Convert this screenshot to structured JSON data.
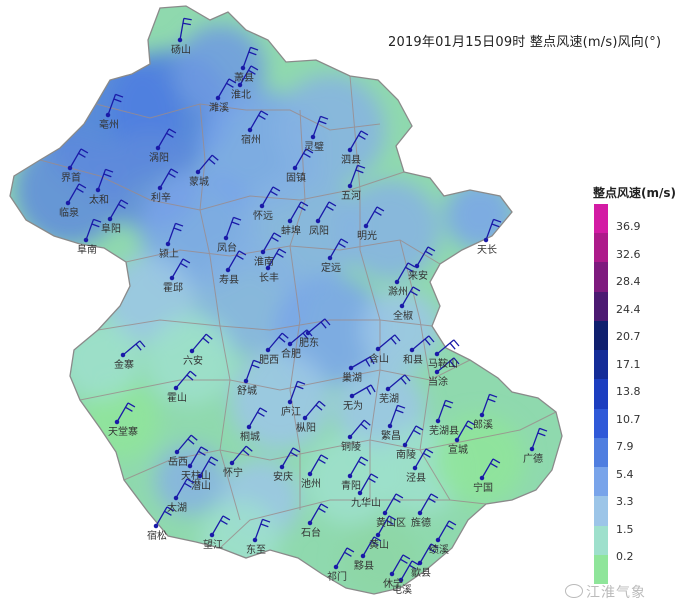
{
  "title": "2019年01月15日09时 整点风速(m/s)风向(°)",
  "legend": {
    "title": "整点风速(m/s)",
    "labels": [
      "36.9",
      "32.6",
      "28.4",
      "24.4",
      "20.7",
      "17.1",
      "13.8",
      "10.7",
      "7.9",
      "5.4",
      "3.3",
      "1.5",
      "0.2"
    ],
    "colors": [
      "#d31ba4",
      "#ad1a8a",
      "#7e1a7e",
      "#4c1a72",
      "#0f1f6e",
      "#142c98",
      "#1c3ec0",
      "#2f59d8",
      "#4f7ee0",
      "#79a4ea",
      "#9cc5e8",
      "#9ee0cc",
      "#8fe59a"
    ]
  },
  "colors": {
    "province_fill": "#8fd9ae",
    "north_fill": "#5f8bdc",
    "mid_fill": "#86b3e3",
    "south_fill": "#8dd6a6",
    "boundary": "#9b8b8b",
    "wind_barb": "#1a1aa8",
    "label": "#333333"
  },
  "stations": [
    {
      "name": "砀山"
    },
    {
      "name": "萧县"
    },
    {
      "name": "淮北"
    },
    {
      "name": "濉溪"
    },
    {
      "name": "宿州"
    },
    {
      "name": "灵璧"
    },
    {
      "name": "泗县"
    },
    {
      "name": "涡阳"
    },
    {
      "name": "蒙城"
    },
    {
      "name": "亳州"
    },
    {
      "name": "利辛"
    },
    {
      "name": "界首"
    },
    {
      "name": "太和"
    },
    {
      "name": "临泉"
    },
    {
      "name": "阜阳"
    },
    {
      "name": "阜南"
    },
    {
      "name": "怀远"
    },
    {
      "name": "蚌埠"
    },
    {
      "name": "固镇"
    },
    {
      "name": "五河"
    },
    {
      "name": "凤阳"
    },
    {
      "name": "明光"
    },
    {
      "name": "天长"
    },
    {
      "name": "凤台"
    },
    {
      "name": "淮南"
    },
    {
      "name": "颍上"
    },
    {
      "name": "长丰"
    },
    {
      "name": "定远"
    },
    {
      "name": "滁州"
    },
    {
      "name": "来安"
    },
    {
      "name": "霍邱"
    },
    {
      "name": "寿县"
    },
    {
      "name": "全椒"
    },
    {
      "name": "肥东"
    },
    {
      "name": "合肥"
    },
    {
      "name": "肥西"
    },
    {
      "name": "含山"
    },
    {
      "name": "和县"
    },
    {
      "name": "马鞍山"
    },
    {
      "name": "当涂"
    },
    {
      "name": "金寨"
    },
    {
      "name": "六安"
    },
    {
      "name": "舒城"
    },
    {
      "name": "巢湖"
    },
    {
      "name": "庐江"
    },
    {
      "name": "无为"
    },
    {
      "name": "芜湖"
    },
    {
      "name": "芜湖县"
    },
    {
      "name": "霍山"
    },
    {
      "name": "桐城"
    },
    {
      "name": "枞阳"
    },
    {
      "name": "铜陵"
    },
    {
      "name": "繁昌"
    },
    {
      "name": "南陵"
    },
    {
      "name": "宣城"
    },
    {
      "name": "郎溪"
    },
    {
      "name": "广德"
    },
    {
      "name": "天堂寨"
    },
    {
      "name": "岳西"
    },
    {
      "name": "天柱山"
    },
    {
      "name": "潜山"
    },
    {
      "name": "怀宁"
    },
    {
      "name": "安庆"
    },
    {
      "name": "太湖"
    },
    {
      "name": "宿松"
    },
    {
      "name": "望江"
    },
    {
      "name": "东至"
    },
    {
      "name": "池州"
    },
    {
      "name": "青阳"
    },
    {
      "name": "九华山"
    },
    {
      "name": "泾县"
    },
    {
      "name": "宁国"
    },
    {
      "name": "旌德"
    },
    {
      "name": "黄山区"
    },
    {
      "name": "黄山"
    },
    {
      "name": "绩溪"
    },
    {
      "name": "石台"
    },
    {
      "name": "祁门"
    },
    {
      "name": "黟县"
    },
    {
      "name": "休宁"
    },
    {
      "name": "屯溪"
    },
    {
      "name": "歙县"
    }
  ],
  "watermark": "江淮气象"
}
